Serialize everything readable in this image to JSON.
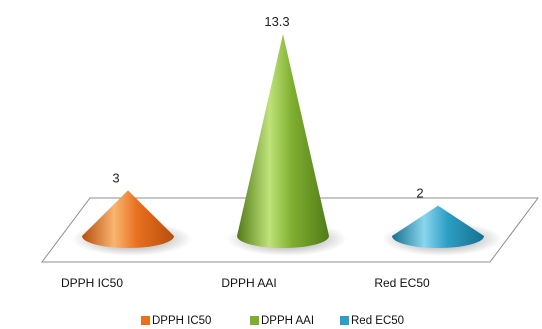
{
  "chart_data": {
    "type": "bar",
    "style": "3d-cone",
    "categories": [
      "DPPH IC50",
      "DPPH AAI",
      "Red EC50"
    ],
    "values": [
      3,
      13.3,
      2
    ],
    "data_labels": [
      "3",
      "13.3",
      "2"
    ],
    "ylim": [
      0,
      13.3
    ],
    "grid": false,
    "legend": {
      "position": "bottom",
      "entries": [
        "DPPH IC50",
        "DPPH AAI",
        "Red EC50"
      ]
    },
    "colors": [
      "#e8701e",
      "#7fae2f",
      "#2d9fc4"
    ],
    "colors_light": [
      "#f9b570",
      "#bfe27a",
      "#8ad6ee"
    ],
    "colors_dark": [
      "#b84e0d",
      "#527b18",
      "#17708f"
    ]
  }
}
